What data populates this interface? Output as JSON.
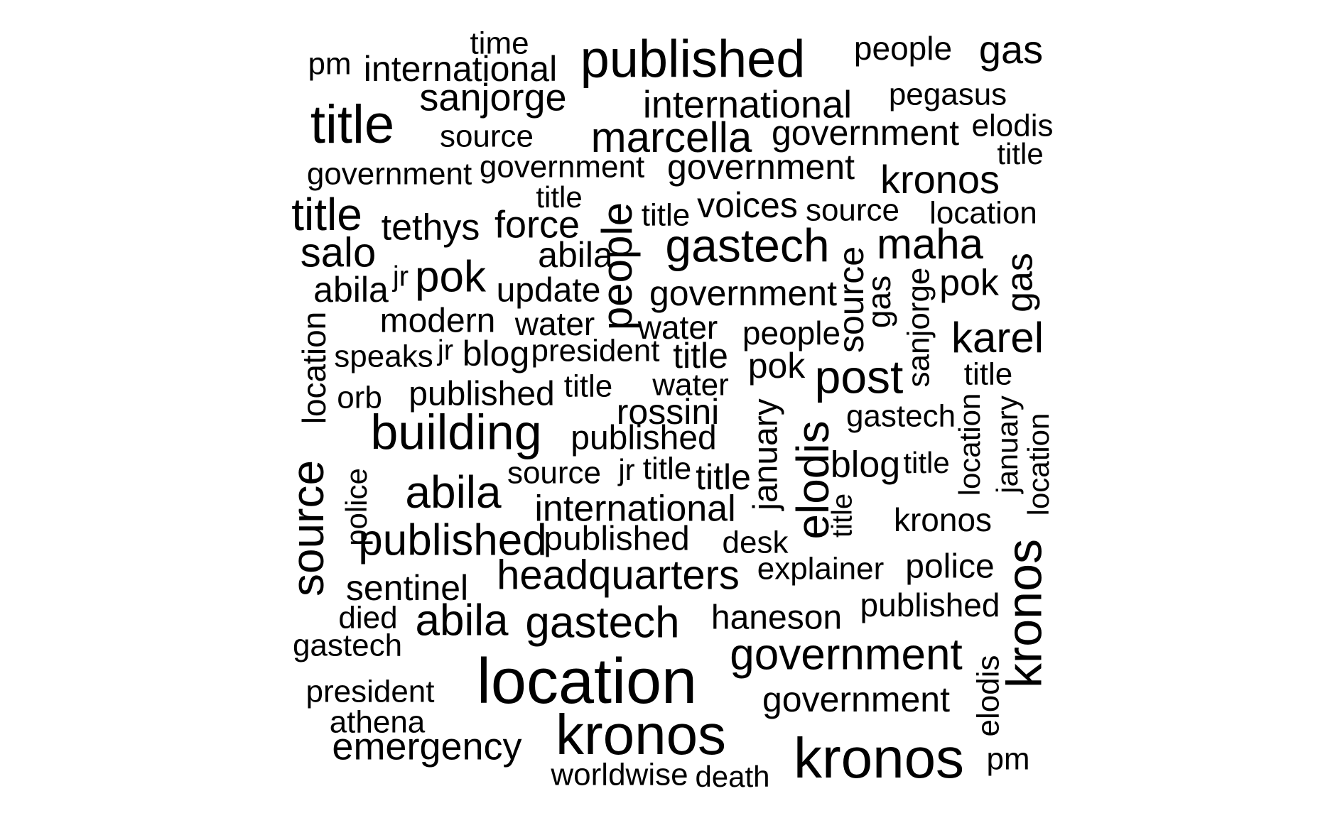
{
  "chart_data": {
    "type": "wordcloud",
    "title": "",
    "words": [
      {
        "text": "time"
      },
      {
        "text": "pm"
      },
      {
        "text": "international"
      },
      {
        "text": "published"
      },
      {
        "text": "people"
      },
      {
        "text": "gas"
      },
      {
        "text": "sanjorge"
      },
      {
        "text": "pegasus"
      },
      {
        "text": "title"
      },
      {
        "text": "international"
      },
      {
        "text": "source"
      },
      {
        "text": "marcella"
      },
      {
        "text": "government"
      },
      {
        "text": "elodis"
      },
      {
        "text": "title"
      },
      {
        "text": "government"
      },
      {
        "text": "government"
      },
      {
        "text": "government"
      },
      {
        "text": "kronos"
      },
      {
        "text": "title"
      },
      {
        "text": "title"
      },
      {
        "text": "tethys"
      },
      {
        "text": "force"
      },
      {
        "text": "people"
      },
      {
        "text": "title"
      },
      {
        "text": "voices"
      },
      {
        "text": "source"
      },
      {
        "text": "location"
      },
      {
        "text": "salo"
      },
      {
        "text": "abila"
      },
      {
        "text": "gastech"
      },
      {
        "text": "maha"
      },
      {
        "text": "abila"
      },
      {
        "text": "jr"
      },
      {
        "text": "pok"
      },
      {
        "text": "update"
      },
      {
        "text": "government"
      },
      {
        "text": "source"
      },
      {
        "text": "gas"
      },
      {
        "text": "sanjorge"
      },
      {
        "text": "pok"
      },
      {
        "text": "gas"
      },
      {
        "text": "modern"
      },
      {
        "text": "water"
      },
      {
        "text": "water"
      },
      {
        "text": "people"
      },
      {
        "text": "karel"
      },
      {
        "text": "location"
      },
      {
        "text": "speaks"
      },
      {
        "text": "jr"
      },
      {
        "text": "blog"
      },
      {
        "text": "president"
      },
      {
        "text": "title"
      },
      {
        "text": "pok"
      },
      {
        "text": "post"
      },
      {
        "text": "title"
      },
      {
        "text": "orb"
      },
      {
        "text": "published"
      },
      {
        "text": "title"
      },
      {
        "text": "water"
      },
      {
        "text": "rossini"
      },
      {
        "text": "january"
      },
      {
        "text": "gastech"
      },
      {
        "text": "january"
      },
      {
        "text": "building"
      },
      {
        "text": "published"
      },
      {
        "text": "elodis"
      },
      {
        "text": "location"
      },
      {
        "text": "location"
      },
      {
        "text": "source"
      },
      {
        "text": "jr"
      },
      {
        "text": "title"
      },
      {
        "text": "title"
      },
      {
        "text": "blog"
      },
      {
        "text": "title"
      },
      {
        "text": "source"
      },
      {
        "text": "police"
      },
      {
        "text": "abila"
      },
      {
        "text": "international"
      },
      {
        "text": "title"
      },
      {
        "text": "published"
      },
      {
        "text": "kronos"
      },
      {
        "text": "published"
      },
      {
        "text": "desk"
      },
      {
        "text": "headquarters"
      },
      {
        "text": "explainer"
      },
      {
        "text": "police"
      },
      {
        "text": "kronos"
      },
      {
        "text": "sentinel"
      },
      {
        "text": "died"
      },
      {
        "text": "abila"
      },
      {
        "text": "gastech"
      },
      {
        "text": "haneson"
      },
      {
        "text": "published"
      },
      {
        "text": "gastech"
      },
      {
        "text": "government"
      },
      {
        "text": "location"
      },
      {
        "text": "president"
      },
      {
        "text": "elodis"
      },
      {
        "text": "government"
      },
      {
        "text": "athena"
      },
      {
        "text": "kronos"
      },
      {
        "text": "emergency"
      },
      {
        "text": "kronos"
      },
      {
        "text": "pm"
      },
      {
        "text": "worldwise"
      },
      {
        "text": "death"
      }
    ]
  }
}
